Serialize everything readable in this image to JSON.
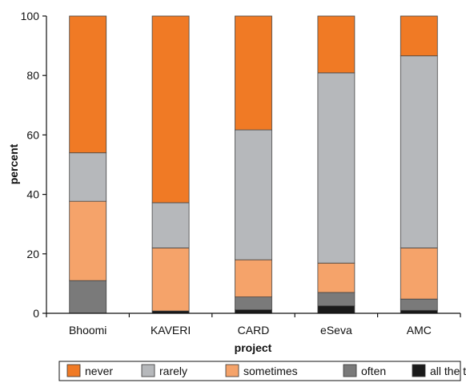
{
  "chart_data": {
    "type": "bar",
    "stacked": true,
    "categories": [
      "Bhoomi",
      "KAVERI",
      "CARD",
      "eSeva",
      "AMC"
    ],
    "xlabel": "project",
    "ylabel": "percent",
    "ylim": [
      0,
      100
    ],
    "yticks": [
      0,
      20,
      40,
      60,
      80,
      100
    ],
    "grid": false,
    "legend_position": "bottom",
    "series": [
      {
        "name": "all the time",
        "color": "#1a1a1a",
        "values": [
          0,
          0.8,
          1.2,
          2.5,
          1.0
        ]
      },
      {
        "name": "often",
        "color": "#7a7a7a",
        "values": [
          11.0,
          0,
          4.3,
          4.5,
          3.8
        ]
      },
      {
        "name": "sometimes",
        "color": "#f5a36a",
        "values": [
          26.7,
          21.2,
          12.5,
          9.9,
          17.2
        ]
      },
      {
        "name": "rarely",
        "color": "#b6b8bb",
        "values": [
          16.3,
          15.2,
          43.7,
          64.0,
          64.6
        ]
      },
      {
        "name": "never",
        "color": "#f07a25",
        "values": [
          46.0,
          62.8,
          38.3,
          19.1,
          13.4
        ]
      }
    ],
    "legend_order": [
      "never",
      "rarely",
      "sometimes",
      "often",
      "all the time"
    ]
  }
}
